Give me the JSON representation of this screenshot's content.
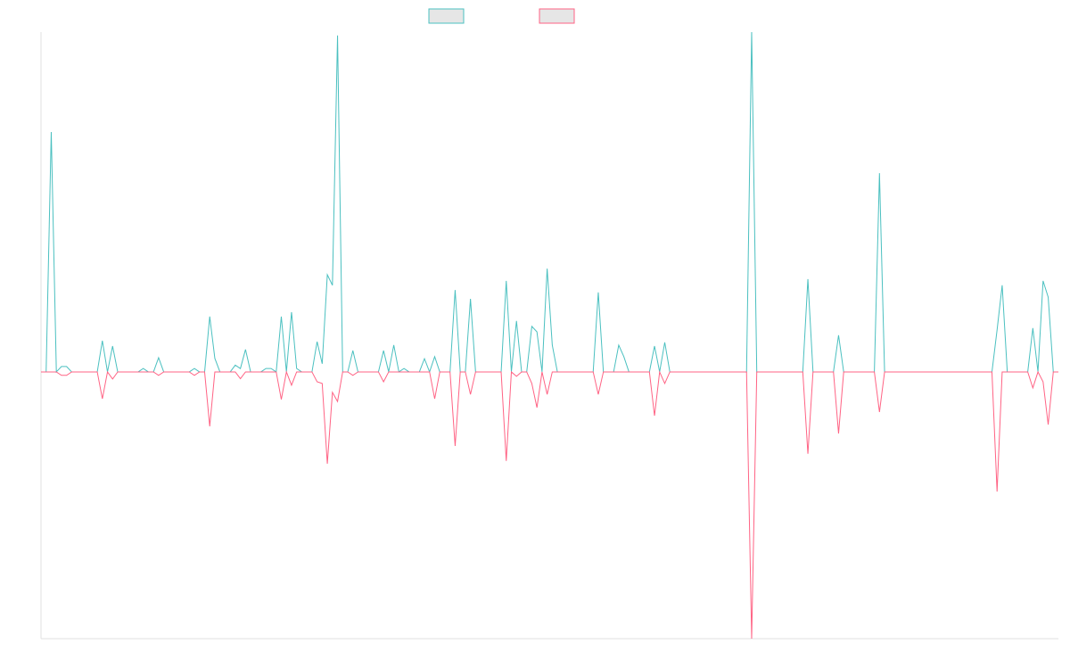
{
  "chart_data": {
    "type": "line",
    "categories": [
      null,
      null,
      null,
      null,
      null,
      null,
      null,
      null,
      null,
      null,
      null,
      null,
      null,
      null,
      null,
      null,
      null,
      null,
      null,
      null,
      null,
      null,
      null,
      null,
      null,
      null,
      null,
      null,
      null,
      null,
      null,
      null,
      null,
      null,
      null,
      null,
      null,
      null,
      null,
      null,
      null,
      null,
      null,
      null,
      null,
      null,
      null,
      null,
      null,
      null,
      null,
      null,
      null,
      null,
      null,
      null,
      null,
      null,
      null,
      null,
      null,
      null,
      null,
      null,
      null,
      null,
      null,
      null,
      null,
      null,
      null,
      null,
      null,
      null,
      null,
      null,
      null,
      null,
      null,
      null,
      null,
      null,
      null,
      null,
      null,
      null,
      null,
      null,
      null,
      null,
      null,
      null,
      null,
      null,
      null,
      null,
      null,
      null,
      null,
      null,
      null,
      null,
      null,
      null,
      null,
      null,
      null,
      null,
      null,
      null,
      null,
      null,
      null,
      null,
      null,
      null,
      null,
      null,
      null,
      null,
      null,
      null,
      null,
      null,
      null,
      null,
      null,
      null,
      null,
      null,
      null,
      null,
      null,
      null,
      null,
      null,
      null,
      null,
      null,
      null,
      null,
      null,
      null,
      null,
      null,
      null,
      null,
      null,
      null,
      null,
      null,
      null,
      null,
      null,
      null,
      null,
      null,
      null,
      null,
      null,
      null,
      null,
      null,
      null,
      null,
      null,
      null,
      null,
      null,
      null,
      null,
      null,
      null,
      null,
      null,
      null,
      null,
      null,
      null,
      null,
      null,
      null,
      null,
      null,
      null,
      null,
      null,
      null,
      null,
      null,
      null,
      null,
      null,
      null,
      null,
      null,
      null,
      null,
      null,
      null
    ],
    "series": [
      {
        "color": "#4bc0c0",
        "values": [
          0,
          0,
          70.6,
          0,
          1.6,
          1.6,
          0,
          0,
          0,
          0,
          0,
          0,
          9.2,
          0,
          7.6,
          0,
          0,
          0,
          0,
          0,
          1,
          0,
          0,
          4.2,
          0,
          0,
          0,
          0,
          0,
          0,
          1,
          0,
          0,
          16.3,
          4,
          0,
          0,
          0,
          2,
          1,
          6.6,
          0,
          0,
          0,
          1,
          1,
          0,
          16.3,
          0,
          17.6,
          1,
          0,
          0,
          0,
          8.9,
          2.4,
          28.6,
          25.5,
          99,
          0,
          0,
          6.3,
          0,
          0,
          0,
          0,
          0,
          6.3,
          0,
          7.9,
          0,
          1,
          0,
          0,
          0,
          3.9,
          0,
          4.5,
          0,
          0,
          0,
          24.1,
          0,
          0,
          21.5,
          0,
          0,
          0,
          0,
          0,
          0,
          26.8,
          0,
          15,
          0,
          0,
          13.4,
          11.8,
          0,
          30.4,
          7.9,
          0,
          0,
          0,
          0,
          0,
          0,
          0,
          0,
          23.4,
          0,
          0,
          0,
          7.9,
          4.5,
          0,
          0,
          0,
          0,
          0,
          7.6,
          0,
          8.7,
          0,
          0,
          0,
          0,
          0,
          0,
          0,
          0,
          0,
          0,
          0,
          0,
          0,
          0,
          0,
          0,
          100,
          0,
          0,
          0,
          0,
          0,
          0,
          0,
          0,
          0,
          0,
          27.3,
          0,
          0,
          0,
          0,
          0,
          10.8,
          0,
          0,
          0,
          0,
          0,
          0,
          0,
          58.5,
          0,
          0,
          0,
          0,
          0,
          0,
          0,
          0,
          0,
          0,
          0,
          0,
          0,
          0,
          0,
          0,
          0,
          0,
          0,
          0,
          0,
          0,
          12.3,
          25.5,
          0,
          0,
          0,
          0,
          0,
          12.9,
          0,
          26.8,
          22,
          0,
          0
        ]
      },
      {
        "color": "#ff6384",
        "values": [
          0,
          0,
          0,
          0,
          -1,
          -1,
          0,
          0,
          0,
          0,
          0,
          0,
          -7.9,
          0,
          -2.1,
          0,
          0,
          0,
          0,
          0,
          0,
          0,
          0,
          -1,
          0,
          0,
          0,
          0,
          0,
          0,
          -1,
          0,
          0,
          -16,
          0,
          0,
          0,
          0,
          0,
          -2,
          0,
          0,
          0,
          0,
          0,
          0,
          0,
          -8.1,
          0,
          -3.9,
          0,
          0,
          0,
          0,
          -2.9,
          -3.4,
          -27,
          -6,
          -8.7,
          0,
          0,
          -1,
          0,
          0,
          0,
          0,
          0,
          -2.9,
          0,
          0,
          0,
          0,
          0,
          0,
          0,
          0,
          0,
          -7.9,
          0,
          0,
          0,
          -21.8,
          0,
          0,
          -6.6,
          0,
          0,
          0,
          0,
          0,
          0,
          -26.2,
          0,
          -1.3,
          0,
          0,
          -3.4,
          -10.5,
          0,
          -6.6,
          0,
          0,
          0,
          0,
          0,
          0,
          0,
          0,
          0,
          -6.6,
          0,
          0,
          0,
          0,
          0,
          0,
          0,
          0,
          0,
          0,
          -12.9,
          0,
          -3.4,
          0,
          0,
          0,
          0,
          0,
          0,
          0,
          0,
          0,
          0,
          0,
          0,
          0,
          0,
          0,
          0,
          -78.5,
          0,
          0,
          0,
          0,
          0,
          0,
          0,
          0,
          0,
          0,
          -24.1,
          0,
          0,
          0,
          0,
          0,
          -18.1,
          0,
          0,
          0,
          0,
          0,
          0,
          0,
          -11.8,
          0,
          0,
          0,
          0,
          0,
          0,
          0,
          0,
          0,
          0,
          0,
          0,
          0,
          0,
          0,
          0,
          0,
          0,
          0,
          0,
          0,
          0,
          -35.2,
          0,
          0,
          0,
          0,
          0,
          0,
          -4.7,
          0,
          -2.9,
          -15.5,
          0,
          0
        ]
      }
    ],
    "ylim": [
      -78.5,
      100
    ]
  }
}
